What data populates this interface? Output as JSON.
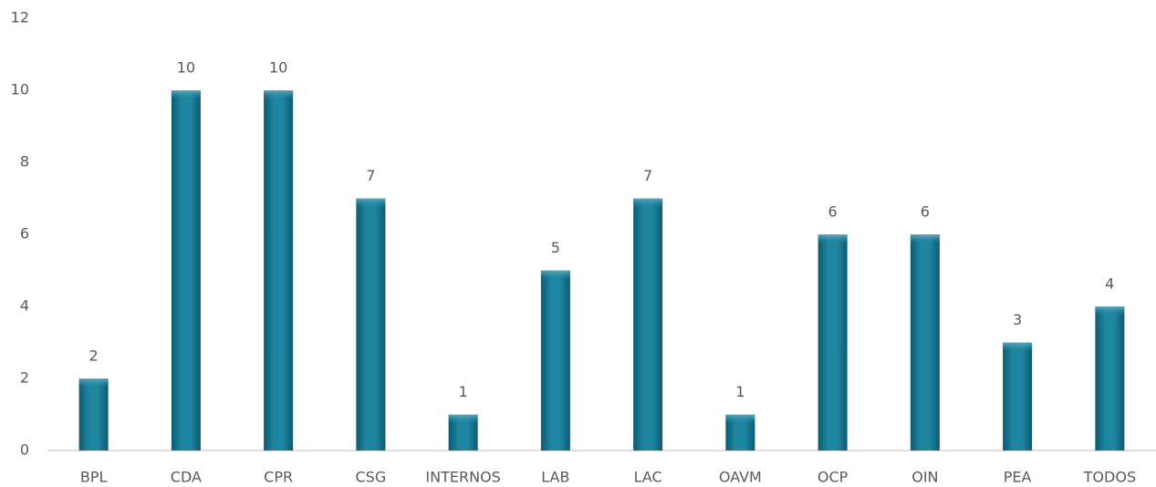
{
  "chart_data": {
    "type": "bar",
    "categories": [
      "BPL",
      "CDA",
      "CPR",
      "CSG",
      "INTERNOS",
      "LAB",
      "LAC",
      "OAVM",
      "OCP",
      "OIN",
      "PEA",
      "TODOS"
    ],
    "values": [
      2,
      10,
      10,
      7,
      1,
      5,
      7,
      1,
      6,
      6,
      3,
      4
    ],
    "color": "#1b7d97",
    "ylim": [
      0,
      12
    ],
    "yticks": [
      0,
      2,
      4,
      6,
      8,
      10,
      12
    ],
    "grid": false,
    "data_labels": true
  }
}
